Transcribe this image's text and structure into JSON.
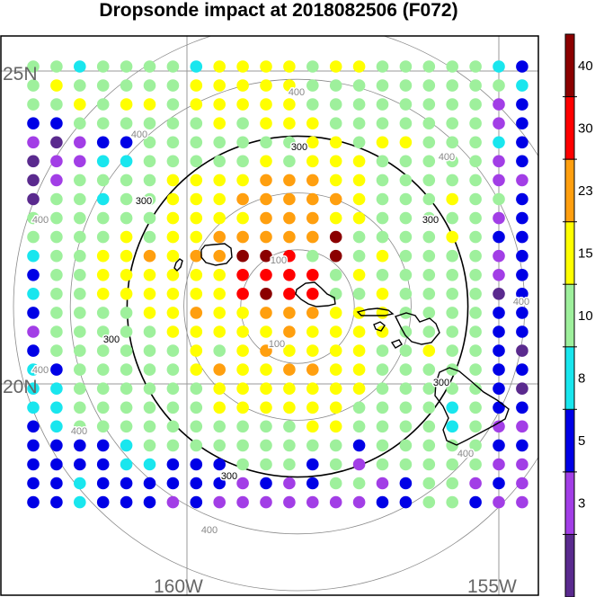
{
  "title": "Dropsonde impact at 2018082506 (F072)",
  "geo_labels": {
    "lat_north": "25N",
    "lat_south": "20N",
    "lon_west": "160W",
    "lon_east": "155W"
  },
  "colors": {
    "c0": "#5a2a8e",
    "c1": "#a23ee6",
    "c2": "#0000e6",
    "c3": "#19e6ee",
    "c4": "#9ef09c",
    "c5": "#ffff00",
    "c6": "#ff9f0f",
    "c7": "#ff0000",
    "c8": "#8b0000",
    "ring_gray": "#8a8a8a",
    "ring_black": "#000000",
    "coast": "#000000"
  },
  "colorbar": {
    "levels": [
      "3",
      "5",
      "8",
      "10",
      "15",
      "23",
      "30",
      "40"
    ],
    "bands": [
      "c0",
      "c1",
      "c2",
      "c3",
      "c4",
      "c5",
      "c6",
      "c7",
      "c8"
    ]
  },
  "rings": [
    {
      "km": 100,
      "label": "100",
      "style": "gray"
    },
    {
      "km": 200,
      "label": "",
      "style": "gray"
    },
    {
      "km": 300,
      "label": "300",
      "style": "black"
    },
    {
      "km": 400,
      "label": "400",
      "style": "gray"
    },
    {
      "km": 500,
      "label": "",
      "style": "gray"
    }
  ],
  "chart_data": {
    "type": "heatmap",
    "title": "Dropsonde impact at 2018082506 (F072)",
    "grid_rows": [
      "44344443555545544444322",
      "45444445555544444444433",
      "44545545555544444444121",
      "22444444545554444444120",
      "10122444444455455444320",
      "01133444445455544444120",
      "01444455556665544444110",
      "04434455566666544454420",
      "44444455556665544444120",
      "44445455666668444454220",
      "34455656688748454444122",
      "24455555577774544444120",
      "34455555578774454444020",
      "24444556556665554444220",
      "14444455555655554444220",
      "24444445456555544544200",
      "32444445655665544444220",
      "33444444555555544444200",
      "33444444555555444434220",
      "23444444444455444434110",
      "22223444444444244444222",
      "22223322244424144444110",
      "22322222212124412441210",
      "22322212111111122442110"
    ]
  }
}
